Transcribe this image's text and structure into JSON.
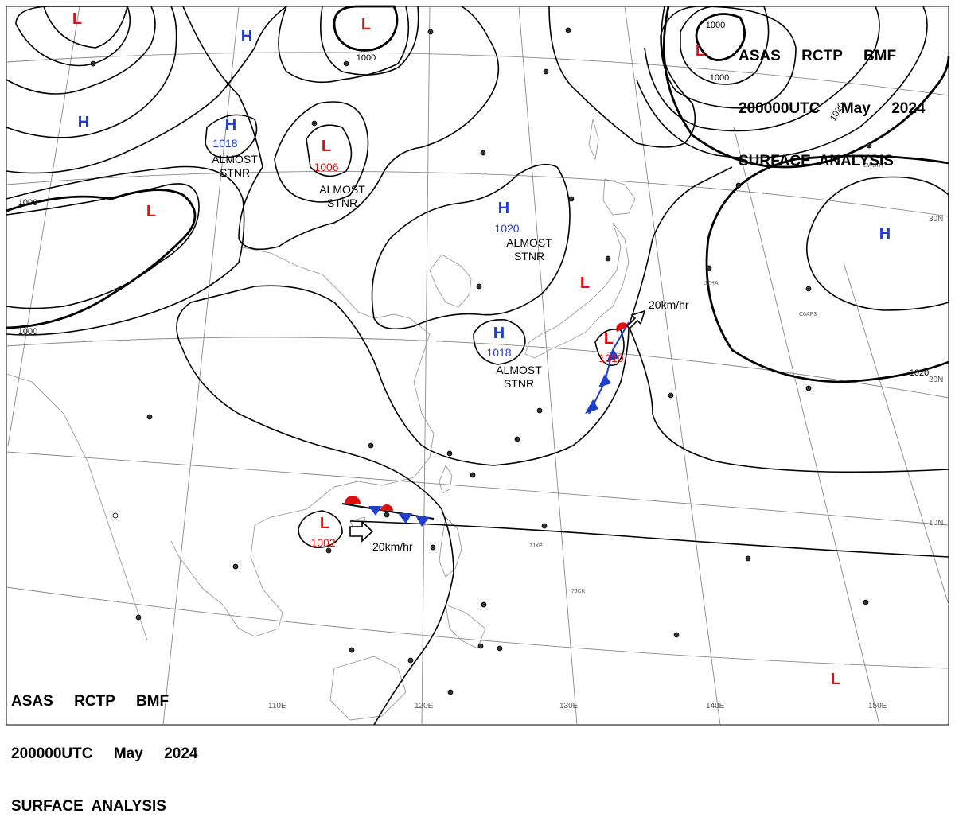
{
  "title": {
    "line1": "ASAS     RCTP     BMF",
    "line2": "200000UTC     May     2024",
    "line3": "SURFACE  ANALYSIS"
  },
  "colors": {
    "high": "#1f3fd0",
    "low": "#e01010",
    "isobar": "#000000",
    "grid": "#888888",
    "coast": "#999999"
  },
  "pressure_systems": [
    {
      "type": "H",
      "value": "",
      "note": ""
    },
    {
      "type": "H",
      "value": "",
      "note": ""
    },
    {
      "type": "H",
      "value": "1018",
      "note": "ALMOST STNR"
    },
    {
      "type": "H",
      "value": "1020",
      "note": "ALMOST STNR"
    },
    {
      "type": "H",
      "value": "1018",
      "note": "ALMOST STNR"
    },
    {
      "type": "H",
      "value": "",
      "note": ""
    },
    {
      "type": "L",
      "value": "",
      "note": ""
    },
    {
      "type": "L",
      "value": "",
      "note": ""
    },
    {
      "type": "L",
      "value": "1006",
      "note": "ALMOST STNR"
    },
    {
      "type": "L",
      "value": "",
      "note": ""
    },
    {
      "type": "L",
      "value": "",
      "note": ""
    },
    {
      "type": "L",
      "value": "",
      "note": ""
    },
    {
      "type": "L",
      "value": "1010",
      "note": ""
    },
    {
      "type": "L",
      "value": "1002",
      "note": ""
    },
    {
      "type": "L",
      "value": "",
      "note": ""
    }
  ],
  "isobar_labels": [
    "1000",
    "1000",
    "1000",
    "1000",
    "1000",
    "1020",
    "1020"
  ],
  "motion_labels": [
    "20km/hr",
    "20km/hr"
  ],
  "longitude_labels": [
    "110E",
    "120E",
    "130E",
    "140E",
    "150E"
  ],
  "latitude_labels": [
    "30N",
    "20N",
    "10N"
  ],
  "station_codes": [
    "EWDHY",
    "JZHA",
    "C6AP3",
    "7JXP",
    "7JCK"
  ]
}
